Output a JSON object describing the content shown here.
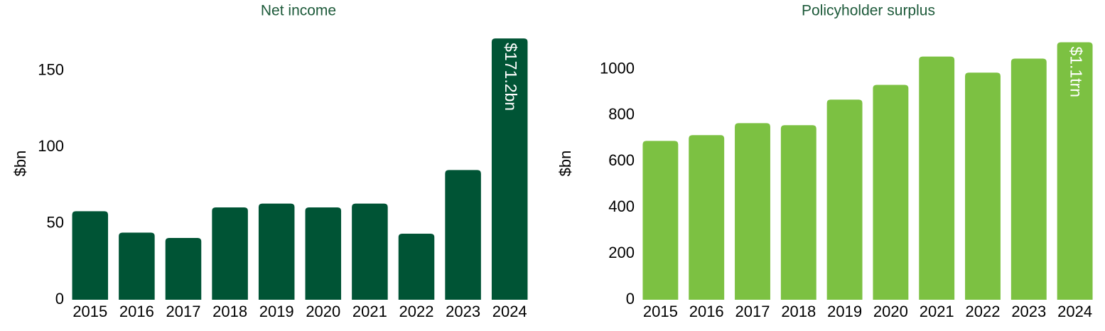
{
  "chart_data": [
    {
      "type": "bar",
      "title": "Net income",
      "y_label": "$bn",
      "categories": [
        "2015",
        "2016",
        "2017",
        "2018",
        "2019",
        "2020",
        "2021",
        "2022",
        "2023",
        "2024"
      ],
      "values": [
        58,
        44,
        40.5,
        60.5,
        63,
        60.5,
        63,
        43.3,
        85,
        171.2
      ],
      "value_labels": [
        null,
        null,
        null,
        null,
        null,
        null,
        null,
        null,
        null,
        "$171.2bn"
      ],
      "color": "#005435",
      "ylim": [
        0,
        175
      ],
      "yticks": [
        0,
        50,
        100,
        150
      ],
      "grid": false
    },
    {
      "type": "bar",
      "title": "Policyholder surplus",
      "y_label": "$bn",
      "categories": [
        "2015",
        "2016",
        "2017",
        "2018",
        "2019",
        "2020",
        "2021",
        "2022",
        "2023",
        "2024"
      ],
      "values": [
        689,
        714,
        766,
        757,
        868,
        932,
        1055,
        985,
        1046,
        1117
      ],
      "value_labels": [
        null,
        null,
        null,
        null,
        null,
        null,
        null,
        null,
        null,
        "$1.1trn"
      ],
      "color": "#7cc142",
      "ylim": [
        0,
        1140
      ],
      "yticks": [
        0,
        200,
        400,
        600,
        800,
        1000
      ],
      "grid": false
    }
  ]
}
